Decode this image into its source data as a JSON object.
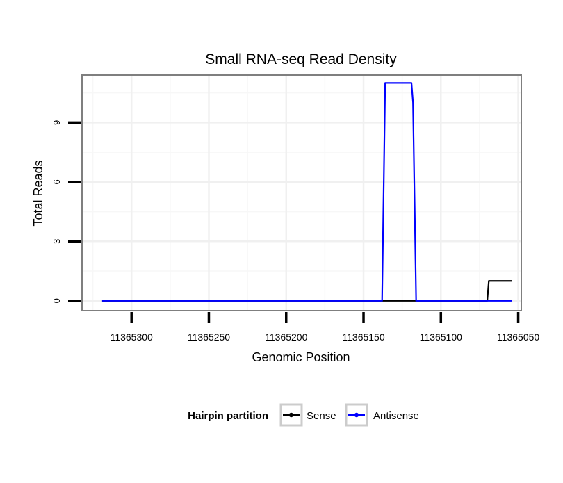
{
  "chart_data": {
    "type": "line",
    "title": "Small RNA-seq Read Density",
    "xlabel": "Genomic Position",
    "ylabel": "Total Reads",
    "x_reversed": true,
    "xlim": [
      11365332,
      11365048
    ],
    "ylim": [
      -0.5,
      11.4
    ],
    "x_ticks": [
      11365300,
      11365250,
      11365200,
      11365150,
      11365100,
      11365050
    ],
    "x_tick_labels": [
      "11365300",
      "11365250",
      "11365200",
      "11365150",
      "11365100",
      "11365050"
    ],
    "y_ticks": [
      0,
      3,
      6,
      9
    ],
    "y_tick_labels": [
      "0",
      "3",
      "6",
      "9"
    ],
    "grid": true,
    "legend": {
      "title": "Hairpin partition",
      "position": "bottom",
      "entries": [
        "Sense",
        "Antisense"
      ]
    },
    "series": [
      {
        "name": "Sense",
        "color": "#000000",
        "x": [
          11365319,
          11365070,
          11365069,
          11365054
        ],
        "y": [
          0,
          0,
          1,
          1
        ]
      },
      {
        "name": "Antisense",
        "color": "#0000ff",
        "x": [
          11365319,
          11365138,
          11365136,
          11365132,
          11365119,
          11365118,
          11365116,
          11365054
        ],
        "y": [
          0,
          0,
          11,
          11,
          11,
          10,
          0,
          0
        ]
      }
    ]
  }
}
